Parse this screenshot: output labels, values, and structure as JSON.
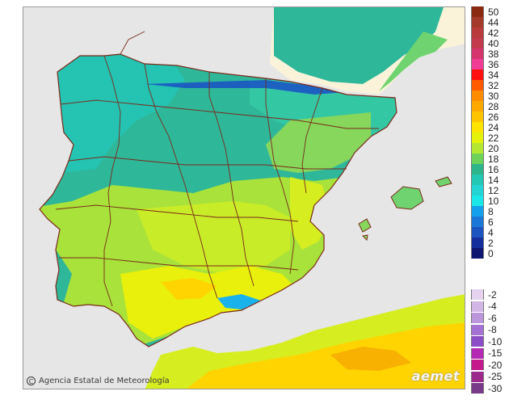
{
  "map": {
    "credit": "Agencia Estatal de Meteorología",
    "logo": "aemet",
    "credit_icon": "copyright-icon",
    "colors": {
      "sea": "#e6e6e6",
      "border": "#7a2a1a",
      "france": "#fbf3d9",
      "coast_green": "#7ad66d"
    }
  },
  "legend": {
    "positive": [
      {
        "label": "50",
        "color": "#8a2a10"
      },
      {
        "label": "44",
        "color": "#a33a2a"
      },
      {
        "label": "42",
        "color": "#b83a3a"
      },
      {
        "label": "40",
        "color": "#c23a4c"
      },
      {
        "label": "38",
        "color": "#d4356c"
      },
      {
        "label": "36",
        "color": "#f03c94"
      },
      {
        "label": "34",
        "color": "#ff1010"
      },
      {
        "label": "32",
        "color": "#ff5a00"
      },
      {
        "label": "30",
        "color": "#ff8c00"
      },
      {
        "label": "28",
        "color": "#ffa800"
      },
      {
        "label": "26",
        "color": "#ffc400"
      },
      {
        "label": "24",
        "color": "#ffe400"
      },
      {
        "label": "22",
        "color": "#e4f20a"
      },
      {
        "label": "20",
        "color": "#b4e830"
      },
      {
        "label": "18",
        "color": "#6cd25a"
      },
      {
        "label": "16",
        "color": "#2cb48a"
      },
      {
        "label": "14",
        "color": "#22c8b4"
      },
      {
        "label": "12",
        "color": "#22d4d2"
      },
      {
        "label": "10",
        "color": "#1ae8e8"
      },
      {
        "label": "8",
        "color": "#14a0ec"
      },
      {
        "label": "6",
        "color": "#1c78d8"
      },
      {
        "label": "4",
        "color": "#1c54c0"
      },
      {
        "label": "2",
        "color": "#142e9c"
      },
      {
        "label": "0",
        "color": "#0e1670"
      }
    ],
    "negative": [
      {
        "label": "-2",
        "color": "#e4d2ee"
      },
      {
        "label": "-4",
        "color": "#d2b6e6"
      },
      {
        "label": "-6",
        "color": "#bc96dc"
      },
      {
        "label": "-8",
        "color": "#a472d2"
      },
      {
        "label": "-10",
        "color": "#8c4ec6"
      },
      {
        "label": "-15",
        "color": "#b42ab4"
      },
      {
        "label": "-20",
        "color": "#c41a8c"
      },
      {
        "label": "-25",
        "color": "#9c2a8c"
      },
      {
        "label": "-30",
        "color": "#7a3a8a"
      }
    ]
  }
}
